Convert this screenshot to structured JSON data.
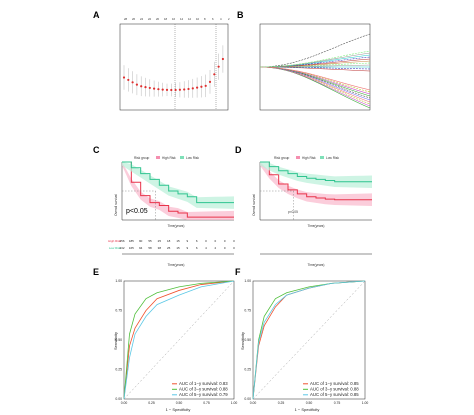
{
  "panels": {
    "a": {
      "label": "A"
    },
    "b": {
      "label": "B"
    },
    "c": {
      "label": "C"
    },
    "d": {
      "label": "D"
    },
    "e": {
      "label": "E"
    },
    "f": {
      "label": "F"
    }
  },
  "survival_c": {
    "legend_title": "Risk group",
    "legend_high": "High Risk",
    "legend_low": "Low Risk",
    "pvalue": "p<0.05",
    "ylabel": "Overall survival",
    "xlabel": "Time(years)",
    "risk_xlabel": "Time(years)",
    "risk_rows": [
      {
        "name": "High Risk",
        "values": [
          "256",
          "185",
          "90",
          "55",
          "25",
          "18",
          "15",
          "9",
          "6",
          "0",
          "0",
          "0",
          "0"
        ]
      },
      {
        "name": "Low Risk",
        "values": [
          "232",
          "165",
          "94",
          "58",
          "38",
          "25",
          "15",
          "9",
          "6",
          "4",
          "2",
          "0",
          "0"
        ]
      }
    ]
  },
  "survival_d": {
    "legend_title": "Risk group",
    "legend_high": "High Risk",
    "legend_low": "Low Risk",
    "pvalue": "p<0.05",
    "ylabel": "Overall survival",
    "xlabel": "Time(years)",
    "risk_xlabel": "Time(years)"
  },
  "roc_e": {
    "xlabel": "1 − Specificity",
    "ylabel": "Sensitivity",
    "legend": [
      "AUC of 1−y survival: 0.83",
      "AUC of 3−y survival: 0.88",
      "AUC of 5−y survival: 0.79"
    ],
    "colors": [
      "#f0522f",
      "#4fbf3a",
      "#5bc8e6"
    ],
    "ticks_y": [
      "0.00",
      "0.25",
      "0.50",
      "0.75",
      "1.00"
    ],
    "ticks_x": [
      "0.00",
      "0.25",
      "0.50",
      "0.75",
      "1.00"
    ]
  },
  "roc_f": {
    "xlabel": "1 − Specificity",
    "ylabel": "Sensitivity",
    "legend": [
      "AUC of 1−y survival: 0.85",
      "AUC of 3−y survival: 0.88",
      "AUC of 5−y survival: 0.85"
    ],
    "colors": [
      "#f0522f",
      "#4fbf3a",
      "#5bc8e6"
    ],
    "ticks_y": [
      "0.00",
      "0.25",
      "0.50",
      "0.75",
      "1.00"
    ],
    "ticks_x": [
      "0.00",
      "0.25",
      "0.50",
      "0.75",
      "1.00"
    ]
  },
  "chart_data": [
    {
      "type": "scatter",
      "panel": "A"
    },
    {
      "type": "line",
      "panel": "B"
    },
    {
      "type": "line",
      "panel": "C",
      "x": [
        0,
        2,
        4,
        6,
        8,
        10,
        12,
        14,
        16,
        18,
        20,
        22,
        24
      ],
      "ylim": [
        0,
        1
      ],
      "series": [
        {
          "name": "High Risk",
          "values": [
            1.0,
            0.65,
            0.42,
            0.3,
            0.25,
            0.15,
            0.12,
            0.05,
            0.05,
            0.05,
            0.05,
            0.05,
            0.05
          ]
        },
        {
          "name": "Low Risk",
          "values": [
            1.0,
            0.9,
            0.8,
            0.7,
            0.6,
            0.5,
            0.45,
            0.4,
            0.3,
            0.3,
            0.3,
            0.3,
            0.3
          ]
        }
      ]
    },
    {
      "type": "line",
      "panel": "D",
      "x": [
        0,
        1,
        2,
        3,
        4,
        5,
        6,
        7,
        8,
        9,
        10,
        11,
        12
      ],
      "ylim": [
        0,
        1
      ],
      "series": [
        {
          "name": "High Risk",
          "values": [
            1.0,
            0.78,
            0.62,
            0.52,
            0.45,
            0.4,
            0.38,
            0.36,
            0.35,
            0.35,
            0.35,
            0.35,
            0.35
          ]
        },
        {
          "name": "Low Risk",
          "values": [
            1.0,
            0.92,
            0.85,
            0.8,
            0.75,
            0.72,
            0.7,
            0.68,
            0.66,
            0.66,
            0.66,
            0.66,
            0.66
          ]
        }
      ]
    },
    {
      "type": "line",
      "panel": "E",
      "xlabel": "1 − Specificity",
      "ylabel": "Sensitivity",
      "xlim": [
        0,
        1
      ],
      "ylim": [
        0,
        1
      ],
      "series": [
        {
          "name": "AUC of 1−y survival: 0.83",
          "x": [
            0,
            0.05,
            0.1,
            0.2,
            0.3,
            0.5,
            0.7,
            1.0
          ],
          "values": [
            0,
            0.45,
            0.6,
            0.75,
            0.85,
            0.92,
            0.97,
            1.0
          ]
        },
        {
          "name": "AUC of 3−y survival: 0.88",
          "x": [
            0,
            0.05,
            0.1,
            0.2,
            0.3,
            0.5,
            0.7,
            1.0
          ],
          "values": [
            0,
            0.55,
            0.72,
            0.85,
            0.9,
            0.95,
            0.98,
            1.0
          ]
        },
        {
          "name": "AUC of 5−y survival: 0.79",
          "x": [
            0,
            0.05,
            0.1,
            0.2,
            0.3,
            0.5,
            0.7,
            1.0
          ],
          "values": [
            0,
            0.35,
            0.55,
            0.7,
            0.8,
            0.88,
            0.95,
            1.0
          ]
        }
      ]
    },
    {
      "type": "line",
      "panel": "F",
      "xlabel": "1 − Specificity",
      "ylabel": "Sensitivity",
      "xlim": [
        0,
        1
      ],
      "ylim": [
        0,
        1
      ],
      "series": [
        {
          "name": "AUC of 1−y survival: 0.85",
          "x": [
            0,
            0.05,
            0.1,
            0.2,
            0.3,
            0.5,
            0.7,
            1.0
          ],
          "values": [
            0,
            0.45,
            0.62,
            0.78,
            0.88,
            0.94,
            0.98,
            1.0
          ]
        },
        {
          "name": "AUC of 3−y survival: 0.88",
          "x": [
            0,
            0.05,
            0.1,
            0.2,
            0.3,
            0.5,
            0.7,
            1.0
          ],
          "values": [
            0,
            0.5,
            0.7,
            0.85,
            0.9,
            0.95,
            0.98,
            1.0
          ]
        },
        {
          "name": "AUC of 5−y survival: 0.85",
          "x": [
            0,
            0.05,
            0.1,
            0.2,
            0.3,
            0.5,
            0.7,
            1.0
          ],
          "values": [
            0,
            0.48,
            0.65,
            0.8,
            0.88,
            0.94,
            0.98,
            1.0
          ]
        }
      ]
    }
  ]
}
